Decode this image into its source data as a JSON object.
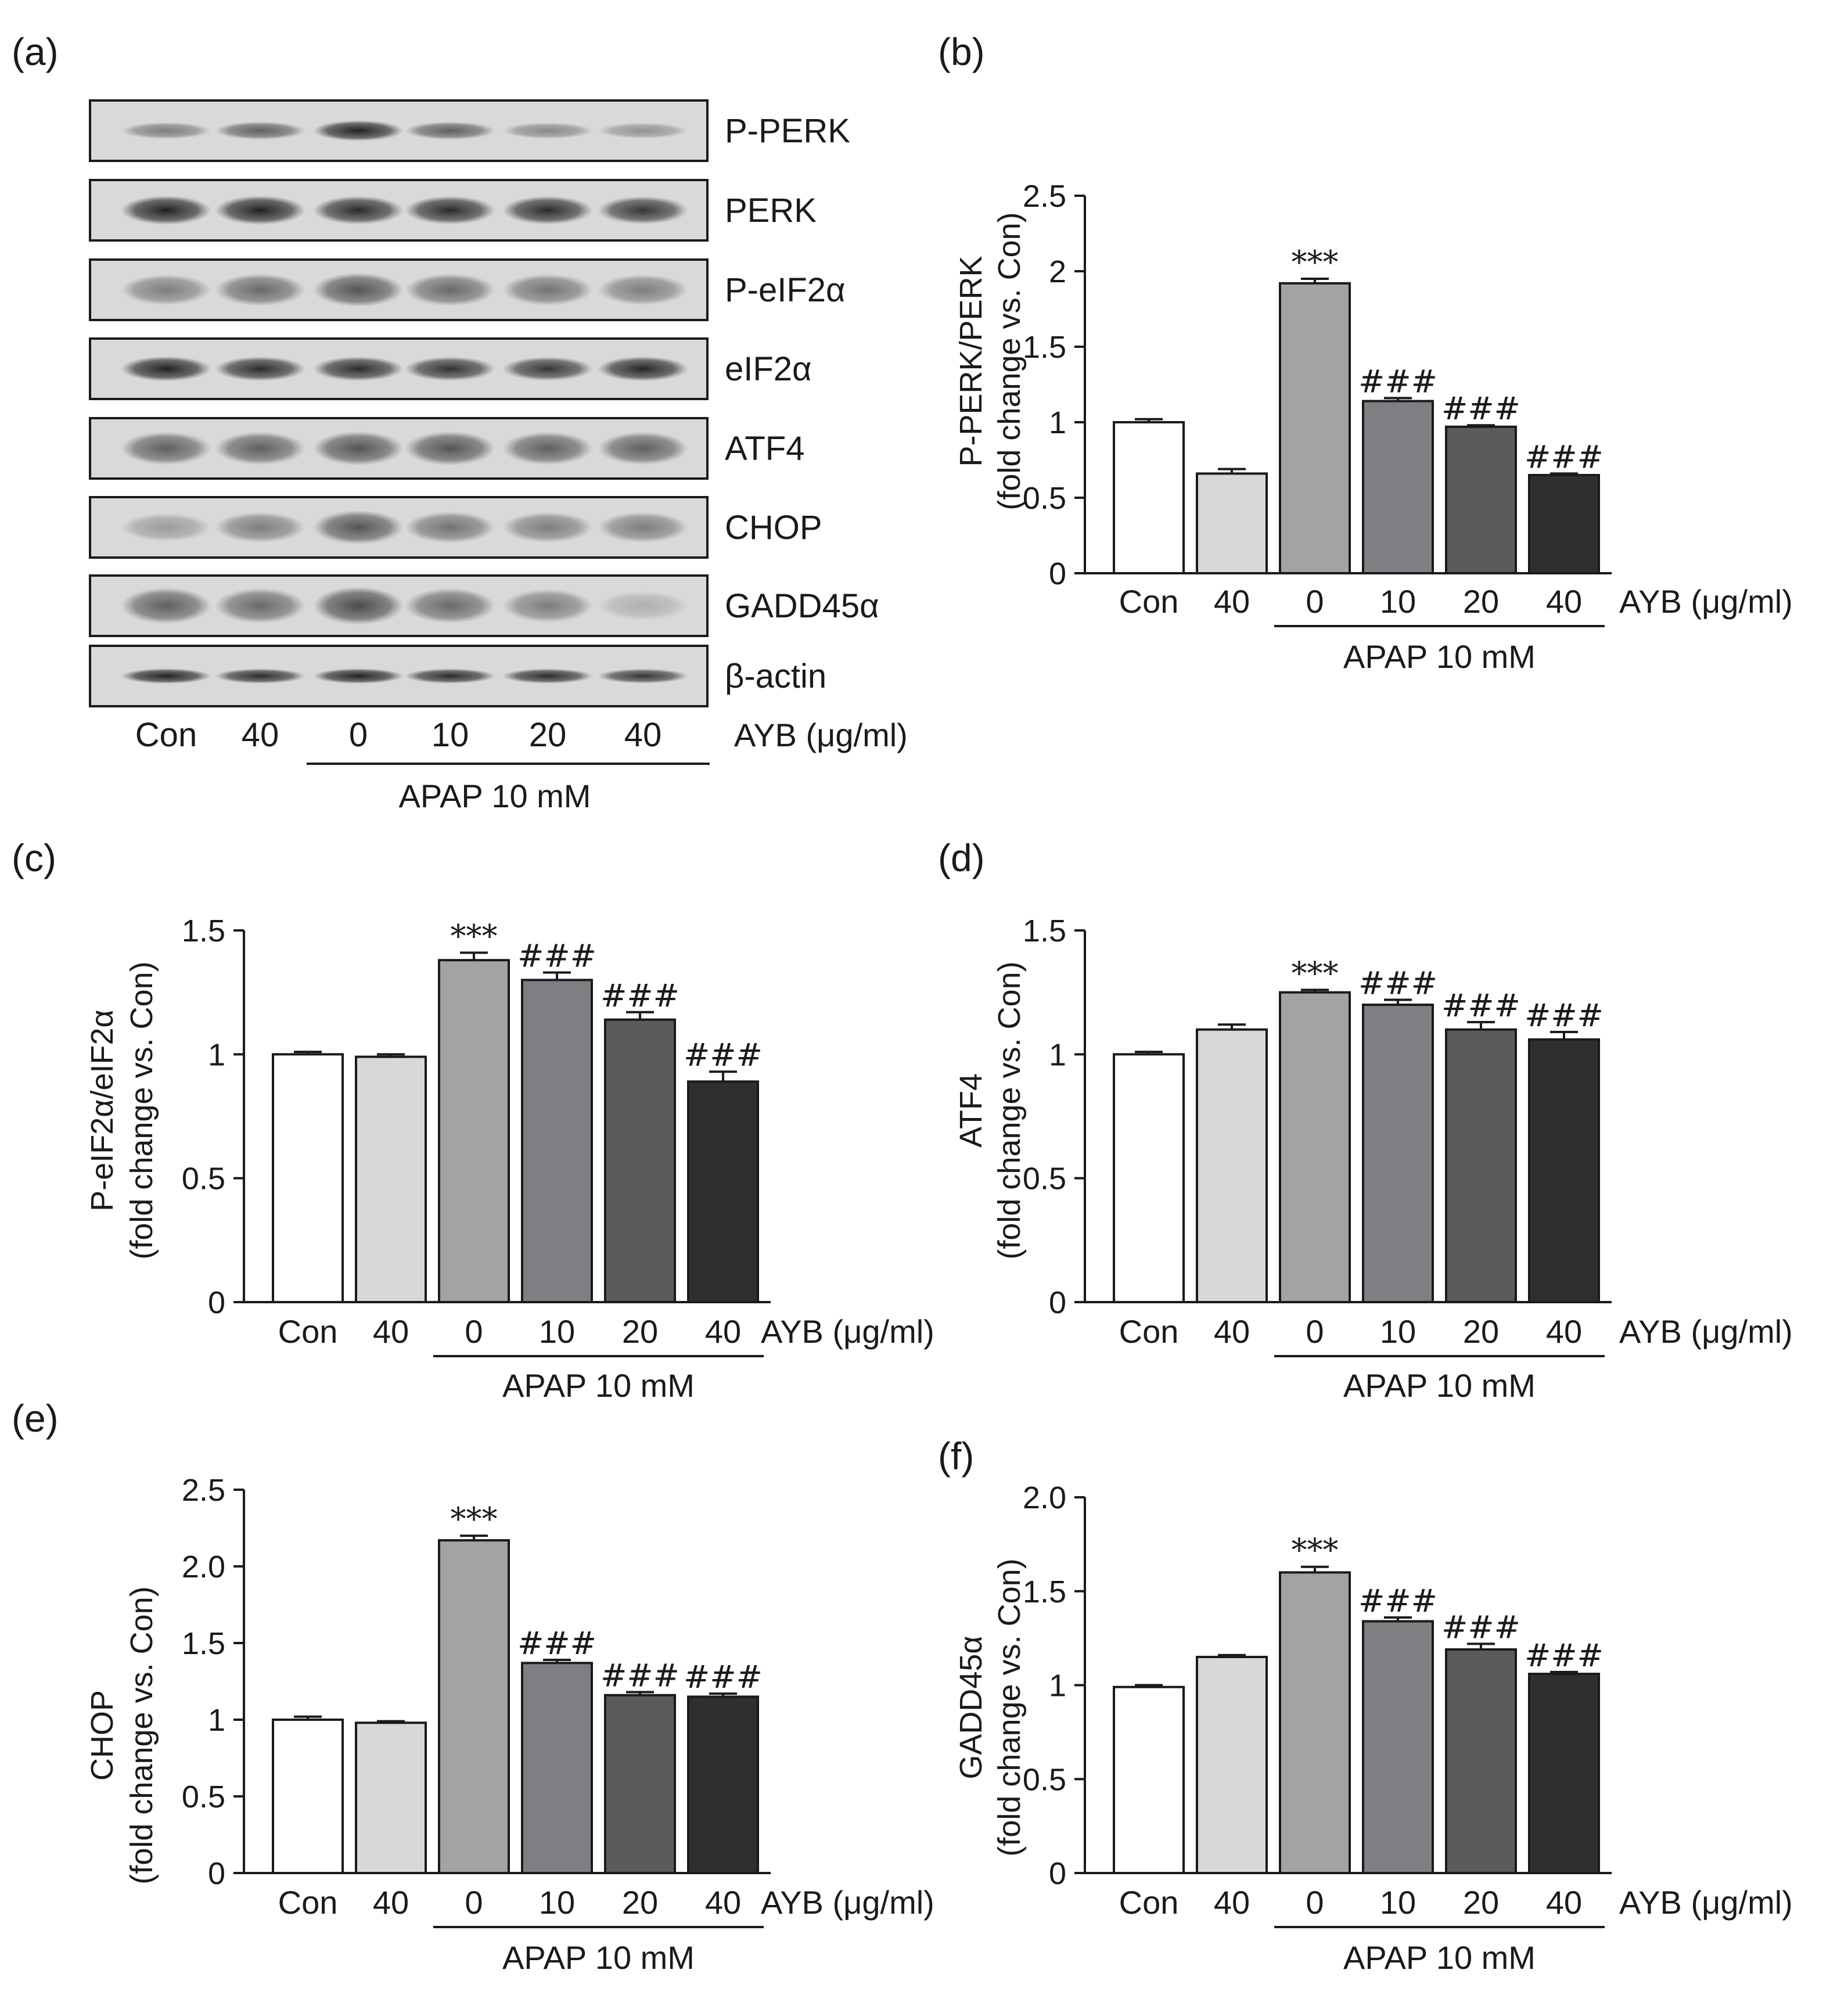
{
  "figure": {
    "panel_a": {
      "letter": "(a)",
      "blots": [
        {
          "label": "P-PERK",
          "intensity": [
            0.45,
            0.6,
            0.9,
            0.6,
            0.4,
            0.35
          ],
          "spread": 0.3
        },
        {
          "label": "PERK",
          "intensity": [
            0.9,
            0.9,
            0.85,
            0.85,
            0.85,
            0.8
          ],
          "spread": 0.42
        },
        {
          "label": "P-eIF2α",
          "intensity": [
            0.45,
            0.55,
            0.65,
            0.55,
            0.5,
            0.45
          ],
          "spread": 0.55
        },
        {
          "label": "eIF2α",
          "intensity": [
            0.9,
            0.85,
            0.85,
            0.82,
            0.8,
            0.88
          ],
          "spread": 0.36
        },
        {
          "label": "ATF4",
          "intensity": [
            0.6,
            0.6,
            0.65,
            0.65,
            0.6,
            0.6
          ],
          "spread": 0.55
        },
        {
          "label": "CHOP",
          "intensity": [
            0.3,
            0.45,
            0.65,
            0.5,
            0.45,
            0.45
          ],
          "spread": 0.55
        },
        {
          "label": "GADD45α",
          "intensity": [
            0.6,
            0.55,
            0.7,
            0.55,
            0.45,
            0.2
          ],
          "spread": 0.6
        },
        {
          "label": "β-actin",
          "intensity": [
            0.9,
            0.85,
            0.9,
            0.85,
            0.85,
            0.8
          ],
          "spread": 0.22
        }
      ],
      "lanes": [
        "Con",
        "40",
        "0",
        "10",
        "20",
        "40"
      ],
      "unit": "AYB (μg/ml)",
      "treatment": "APAP 10 mM"
    },
    "categories": [
      "Con",
      "40",
      "0",
      "10",
      "20",
      "40"
    ],
    "unit": "AYB (μg/ml)",
    "treatment": "APAP 10 mM",
    "bar_colors": [
      "#ffffff",
      "#d8d8d8",
      "#a3a3a6",
      "#7e7f82",
      "#5b5b5b",
      "#2f2f2f"
    ]
  },
  "chart_data": [
    {
      "letter": "(b)",
      "type": "bar",
      "ylabel_line1": "P-PERK/PERK",
      "ylabel_line2": "(fold change vs. Con)",
      "ylim": [
        0,
        2.5
      ],
      "yticks": [
        "0",
        "0.5",
        "1",
        "1.5",
        "2",
        "2.5"
      ],
      "values": [
        1.0,
        0.66,
        1.92,
        1.14,
        0.97,
        0.65
      ],
      "errors": [
        0.02,
        0.03,
        0.03,
        0.02,
        0.01,
        0.01
      ],
      "annotations": [
        "",
        "",
        "***",
        "###",
        "###",
        "###"
      ]
    },
    {
      "letter": "(c)",
      "type": "bar",
      "ylabel_line1": "P-eIF2α/eIF2α",
      "ylabel_line2": "(fold change vs. Con)",
      "ylim": [
        0,
        1.5
      ],
      "yticks": [
        "0",
        "0.5",
        "1",
        "1.5"
      ],
      "values": [
        1.0,
        0.99,
        1.38,
        1.3,
        1.14,
        0.89
      ],
      "errors": [
        0.01,
        0.01,
        0.03,
        0.03,
        0.03,
        0.04
      ],
      "annotations": [
        "",
        "",
        "***",
        "###",
        "###",
        "###"
      ]
    },
    {
      "letter": "(d)",
      "type": "bar",
      "ylabel_line1": "ATF4",
      "ylabel_line2": "(fold change vs. Con)",
      "ylim": [
        0,
        1.5
      ],
      "yticks": [
        "0",
        "0.5",
        "1",
        "1.5"
      ],
      "values": [
        1.0,
        1.1,
        1.25,
        1.2,
        1.1,
        1.06
      ],
      "errors": [
        0.01,
        0.02,
        0.01,
        0.02,
        0.03,
        0.03
      ],
      "annotations": [
        "",
        "",
        "***",
        "###",
        "###",
        "###"
      ]
    },
    {
      "letter": "(e)",
      "type": "bar",
      "ylabel_line1": "CHOP",
      "ylabel_line2": "(fold change vs. Con)",
      "ylim": [
        0,
        2.5
      ],
      "yticks": [
        "0",
        "0.5",
        "1",
        "1.5",
        "2.0",
        "2.5"
      ],
      "values": [
        1.0,
        0.98,
        2.17,
        1.37,
        1.16,
        1.15
      ],
      "errors": [
        0.02,
        0.01,
        0.03,
        0.02,
        0.02,
        0.02
      ],
      "annotations": [
        "",
        "",
        "***",
        "###",
        "###",
        "###"
      ]
    },
    {
      "letter": "(f)",
      "type": "bar",
      "ylabel_line1": "GADD45α",
      "ylabel_line2": "(fold change vs. Con)",
      "ylim": [
        0,
        2.0
      ],
      "yticks": [
        "0",
        "0.5",
        "1",
        "1.5",
        "2.0"
      ],
      "values": [
        0.99,
        1.15,
        1.6,
        1.34,
        1.19,
        1.06
      ],
      "errors": [
        0.01,
        0.01,
        0.03,
        0.02,
        0.03,
        0.01
      ],
      "annotations": [
        "",
        "",
        "***",
        "###",
        "###",
        "###"
      ]
    }
  ]
}
